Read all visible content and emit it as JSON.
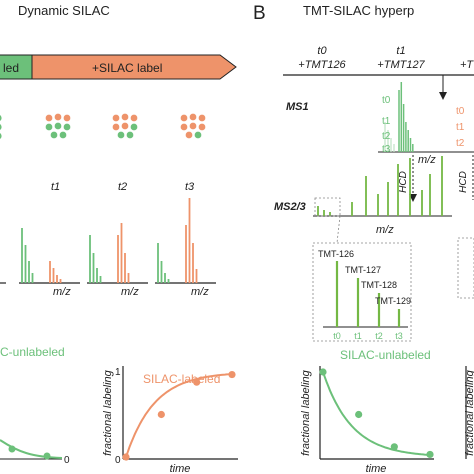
{
  "panel_a": {
    "title": "Dynamic SILAC",
    "arrow_left_label": "led",
    "arrow_right_label": "+SILAC label",
    "time_labels": [
      "t1",
      "t2",
      "t3"
    ],
    "mz_label": "m/z",
    "unlabeled_title": "C-unlabeled",
    "labeled_title": "SILAC-labeled",
    "ylabel": "fractional labeling",
    "xlabel": "time",
    "y_top_tick": "1",
    "y_bottom_tick": "0",
    "left_y_bottom_tick": "0"
  },
  "panel_b": {
    "letter": "B",
    "title": "TMT-SILAC hyperp",
    "t0_label": "t0",
    "t0_tag": "+TMT126",
    "t1_label": "t1",
    "t1_tag": "+TMT127",
    "right_tag": "+T",
    "ms1_label": "MS1",
    "ms1_tlabels_green": [
      "t0",
      "t1",
      "t2",
      "t3"
    ],
    "ms1_tlabels_orange": [
      "t0",
      "t1",
      "t2",
      "t3"
    ],
    "mz_label": "m/z",
    "hcd_label": "HCD",
    "ms23_label": "MS2/3",
    "reporter_labels": [
      "TMT-126",
      "TMT-127",
      "TMT-128",
      "TMT-129"
    ],
    "reporter_axis": [
      "t0",
      "t1",
      "t2",
      "t3"
    ],
    "unlabeled_title": "SILAC-unlabeled",
    "ylabel": "fractional labeling",
    "xlabel": "time"
  },
  "colors": {
    "green": "#6cc07a",
    "green_dark": "#4a9a3e",
    "orange": "#ee936a",
    "orange_dark": "#e07b4d",
    "bar_green": "#74b844"
  },
  "chart_data": [
    {
      "type": "line",
      "title": "SILAC-labeled",
      "xlabel": "time",
      "ylabel": "fractional labeling",
      "ylim": [
        0,
        1
      ],
      "series": [
        {
          "name": "SILAC-labeled",
          "x": [
            0,
            1,
            2,
            3
          ],
          "y": [
            0,
            0.5,
            0.88,
            0.97
          ]
        }
      ]
    },
    {
      "type": "line",
      "title": "SILAC-unlabeled",
      "xlabel": "time",
      "ylabel": "fractional labeling",
      "ylim": [
        0,
        1
      ],
      "series": [
        {
          "name": "SILAC-unlabeled",
          "x": [
            0,
            1,
            2,
            3
          ],
          "y": [
            1,
            0.5,
            0.12,
            0.03
          ]
        }
      ]
    }
  ]
}
